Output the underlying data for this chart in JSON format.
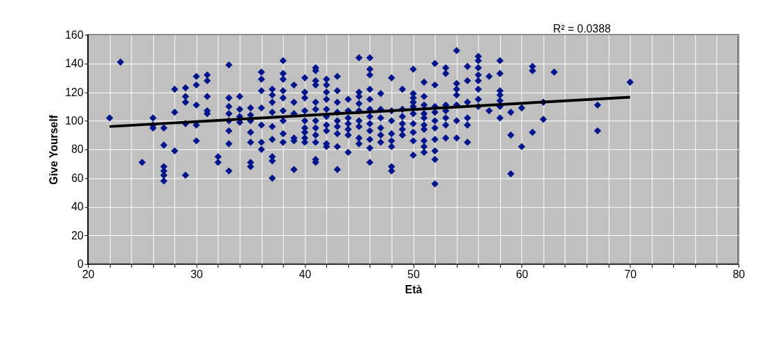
{
  "chart_data": {
    "type": "scatter",
    "xlabel": "Età",
    "ylabel": "Give Yourself",
    "xlim": [
      20,
      80
    ],
    "ylim": [
      0,
      160
    ],
    "xticks": [
      20,
      {
        "value": 22,
        "label": null
      },
      {
        "value": 24,
        "label": null
      },
      {
        "value": 26,
        "label": null
      },
      {
        "value": 28,
        "label": null
      },
      30,
      {
        "value": 32,
        "label": null
      },
      {
        "value": 34,
        "label": null
      },
      {
        "value": 36,
        "label": null
      },
      {
        "value": 38,
        "label": null
      },
      40,
      {
        "value": 42,
        "label": null
      },
      {
        "value": 44,
        "label": null
      },
      {
        "value": 46,
        "label": null
      },
      {
        "value": 48,
        "label": null
      },
      50,
      {
        "value": 52,
        "label": null
      },
      {
        "value": 54,
        "label": null
      },
      {
        "value": 56,
        "label": null
      },
      {
        "value": 58,
        "label": null
      },
      60,
      {
        "value": 62,
        "label": null
      },
      {
        "value": 64,
        "label": null
      },
      {
        "value": 66,
        "label": null
      },
      {
        "value": 68,
        "label": null
      },
      70,
      {
        "value": 72,
        "label": null
      },
      {
        "value": 74,
        "label": null
      },
      {
        "value": 76,
        "label": null
      },
      {
        "value": 78,
        "label": null
      },
      80
    ],
    "yticks": [
      0,
      20,
      40,
      60,
      80,
      100,
      120,
      140,
      160
    ],
    "grid": true,
    "annotations": [
      "R² = 0.0388"
    ],
    "series": [
      {
        "type": "scatter",
        "marker": "diamond",
        "color": "#00148c",
        "x": [
          22,
          23,
          25,
          26,
          26,
          26,
          27,
          27,
          27,
          27,
          27,
          27,
          28,
          28,
          28,
          29,
          29,
          29,
          29,
          29,
          30,
          30,
          30,
          30,
          30,
          31,
          31,
          31,
          31,
          31,
          32,
          32,
          33,
          33,
          33,
          33,
          33,
          33,
          33,
          33,
          34,
          34,
          34,
          34,
          35,
          35,
          35,
          35,
          35,
          35,
          35,
          36,
          36,
          36,
          36,
          36,
          36,
          36,
          37,
          37,
          37,
          37,
          37,
          37,
          37,
          37,
          37,
          38,
          38,
          38,
          38,
          38,
          38,
          38,
          38,
          38,
          39,
          39,
          39,
          39,
          39,
          39,
          40,
          40,
          40,
          40,
          40,
          40,
          40,
          40,
          40,
          41,
          41,
          41,
          41,
          41,
          41,
          41,
          41,
          41,
          41,
          41,
          41,
          42,
          42,
          42,
          42,
          42,
          42,
          42,
          42,
          42,
          42,
          43,
          43,
          43,
          43,
          43,
          43,
          43,
          43,
          43,
          44,
          44,
          44,
          44,
          44,
          44,
          44,
          45,
          45,
          45,
          45,
          45,
          45,
          45,
          45,
          45,
          46,
          46,
          46,
          46,
          46,
          46,
          46,
          46,
          46,
          46,
          46,
          46,
          47,
          47,
          47,
          47,
          47,
          47,
          48,
          48,
          48,
          48,
          48,
          48,
          48,
          48,
          49,
          49,
          49,
          49,
          49,
          49,
          50,
          50,
          50,
          50,
          50,
          50,
          50,
          50,
          50,
          50,
          51,
          51,
          51,
          51,
          51,
          51,
          51,
          51,
          51,
          51,
          52,
          52,
          52,
          52,
          52,
          52,
          52,
          52,
          52,
          52,
          53,
          53,
          53,
          53,
          53,
          53,
          53,
          54,
          54,
          54,
          54,
          54,
          54,
          54,
          55,
          55,
          55,
          55,
          55,
          55,
          56,
          56,
          56,
          56,
          56,
          56,
          56,
          56,
          57,
          57,
          58,
          58,
          58,
          58,
          58,
          58,
          58,
          59,
          59,
          59,
          60,
          60,
          61,
          61,
          61,
          62,
          62,
          63,
          67,
          67,
          70
        ],
        "values": [
          102,
          141,
          71,
          102,
          95,
          97,
          95,
          83,
          68,
          65,
          62,
          58,
          122,
          106,
          79,
          123,
          117,
          113,
          98,
          62,
          131,
          125,
          111,
          97,
          86,
          132,
          128,
          117,
          107,
          105,
          75,
          71,
          139,
          116,
          110,
          105,
          100,
          93,
          84,
          65,
          117,
          108,
          103,
          99,
          109,
          104,
          100,
          92,
          85,
          71,
          68,
          134,
          129,
          121,
          109,
          97,
          85,
          80,
          122,
          118,
          113,
          106,
          96,
          87,
          75,
          72,
          60,
          142,
          133,
          129,
          121,
          116,
          107,
          100,
          91,
          85,
          125,
          113,
          105,
          88,
          86,
          66,
          130,
          120,
          116,
          107,
          100,
          95,
          92,
          88,
          85,
          137,
          135,
          128,
          125,
          113,
          108,
          100,
          95,
          90,
          85,
          73,
          71,
          129,
          125,
          120,
          115,
          108,
          103,
          97,
          93,
          84,
          82,
          131,
          121,
          113,
          106,
          100,
          96,
          91,
          82,
          66,
          115,
          107,
          102,
          98,
          94,
          90,
          78,
          144,
          120,
          117,
          112,
          107,
          100,
          96,
          88,
          84,
          144,
          136,
          132,
          122,
          115,
          108,
          103,
          98,
          93,
          87,
          81,
          71,
          119,
          108,
          102,
          95,
          90,
          85,
          130,
          107,
          100,
          91,
          86,
          82,
          68,
          65,
          122,
          108,
          103,
          98,
          94,
          90,
          136,
          119,
          116,
          113,
          110,
          105,
          98,
          92,
          86,
          76,
          127,
          117,
          111,
          105,
          102,
          97,
          94,
          86,
          82,
          78,
          140,
          125,
          110,
          106,
          100,
          95,
          87,
          79,
          73,
          56,
          137,
          133,
          111,
          107,
          102,
          97,
          88,
          149,
          126,
          122,
          118,
          111,
          100,
          88,
          138,
          128,
          113,
          102,
          97,
          85,
          145,
          142,
          137,
          132,
          128,
          122,
          115,
          110,
          131,
          107,
          142,
          133,
          121,
          118,
          114,
          110,
          102,
          106,
          90,
          63,
          109,
          82,
          138,
          135,
          92,
          113,
          101,
          134,
          111,
          93,
          127
        ]
      },
      {
        "type": "line",
        "color": "#000000",
        "x": [
          22,
          70
        ],
        "values": [
          96,
          116.5
        ]
      }
    ]
  }
}
